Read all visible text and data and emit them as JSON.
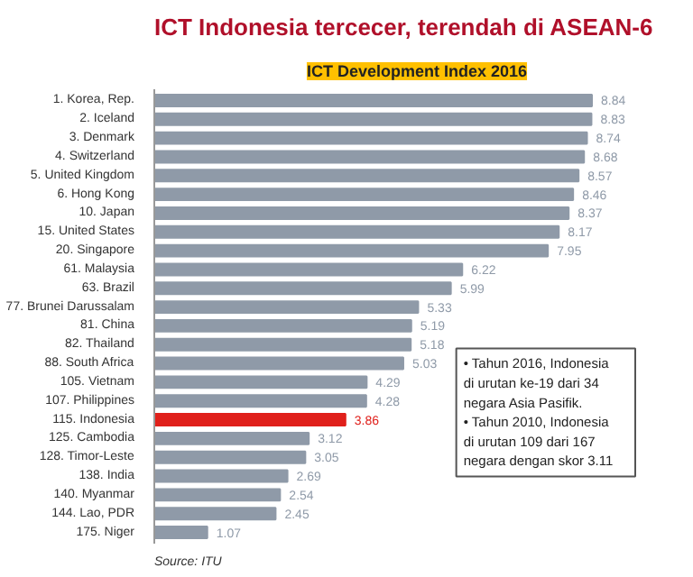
{
  "chart_data": {
    "type": "bar",
    "orientation": "horizontal",
    "title": "ICT Indonesia tercecer, terendah di ASEAN-6",
    "subtitle": "ICT Development Index 2016",
    "categories": [
      "1. Korea, Rep.",
      "2. Iceland",
      "3. Denmark",
      "4. Switzerland",
      "5. United Kingdom",
      "6. Hong Kong",
      "10. Japan",
      "15. United States",
      "20. Singapore",
      "61. Malaysia",
      "63. Brazil",
      "77. Brunei Darussalam",
      "81. China",
      "82. Thailand",
      "88. South Africa",
      "105. Vietnam",
      "107. Philippines",
      "115. Indonesia",
      "125. Cambodia",
      "128. Timor-Leste",
      "138. India",
      "140. Myanmar",
      "144. Lao, PDR",
      "175. Niger"
    ],
    "values": [
      8.84,
      8.83,
      8.74,
      8.68,
      8.57,
      8.46,
      8.37,
      8.17,
      7.95,
      6.22,
      5.99,
      5.33,
      5.19,
      5.18,
      5.03,
      4.29,
      4.28,
      3.86,
      3.12,
      3.05,
      2.69,
      2.54,
      2.45,
      1.07
    ],
    "colors": [
      "#8f9aa8",
      "#8f9aa8",
      "#8f9aa8",
      "#8f9aa8",
      "#8f9aa8",
      "#8f9aa8",
      "#8f9aa8",
      "#8f9aa8",
      "#8f9aa8",
      "#8f9aa8",
      "#8f9aa8",
      "#8f9aa8",
      "#8f9aa8",
      "#8f9aa8",
      "#8f9aa8",
      "#8f9aa8",
      "#8f9aa8",
      "#e0201b",
      "#8f9aa8",
      "#8f9aa8",
      "#8f9aa8",
      "#8f9aa8",
      "#8f9aa8",
      "#8f9aa8"
    ],
    "data_labels": true,
    "annotations": [
      "• Tahun 2016, Indonesia di urutan ke-19 dari 34 negara Asia Pasifik.",
      "• Tahun 2010, Indonesia di urutan 109 dari 167 negara dengan skor 3.11",
      "Source: ITU"
    ]
  }
}
